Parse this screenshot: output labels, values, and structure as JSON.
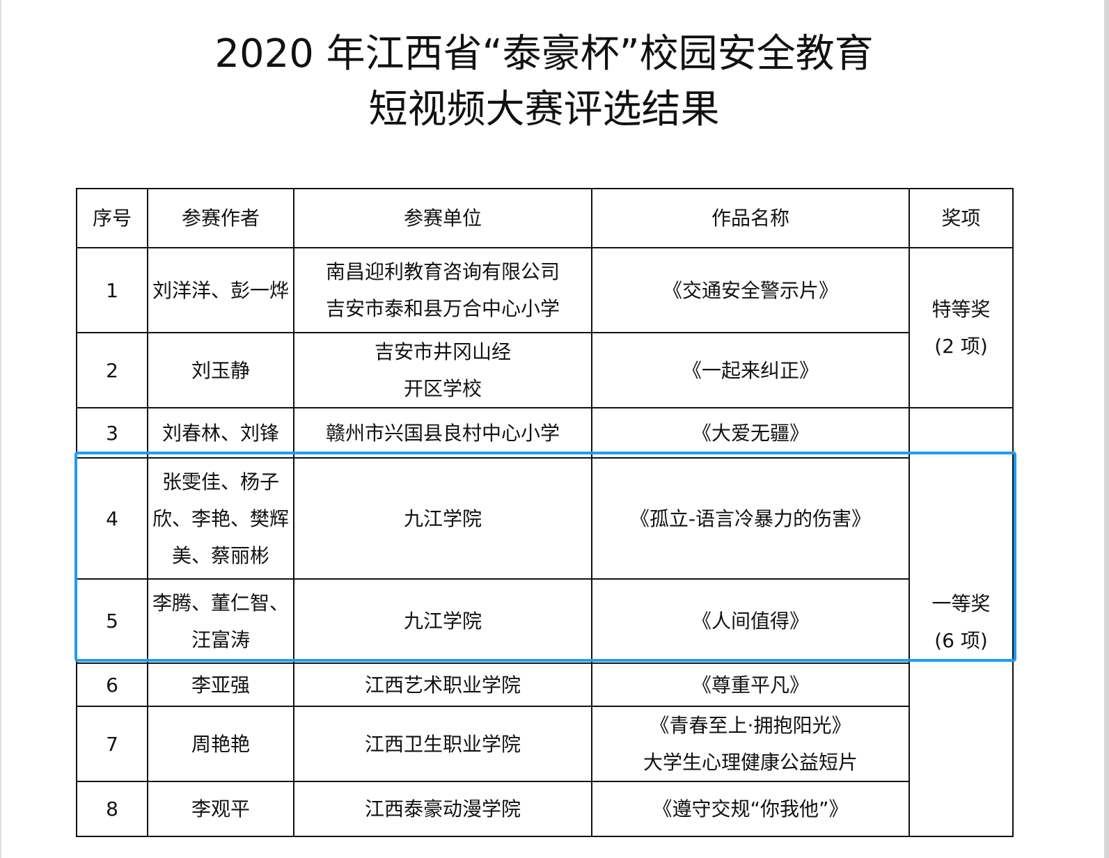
{
  "title": {
    "line1": "2020 年江西省“泰豪杯”校园安全教育",
    "line2": "短视频大赛评选结果"
  },
  "headers": [
    "序号",
    "参赛作者",
    "参赛单位",
    "作品名称",
    "奖项"
  ],
  "rows": [
    {
      "no": "1",
      "authors": [
        "刘洋洋、彭一烨"
      ],
      "unit": [
        "南昌迎利教育咨询有限公司",
        "吉安市泰和县万合中心小学"
      ],
      "work": [
        "《交通安全警示片》"
      ]
    },
    {
      "no": "2",
      "authors": [
        "刘玉静"
      ],
      "unit": [
        "吉安市井冈山经",
        "开区学校"
      ],
      "work": [
        "《一起来纠正》"
      ]
    },
    {
      "no": "3",
      "authors": [
        "刘春林、刘锋"
      ],
      "unit": [
        "赣州市兴国县良村中心小学"
      ],
      "work": [
        "《大爱无疆》"
      ]
    },
    {
      "no": "4",
      "authors": [
        "张雯佳、杨子",
        "欣、李艳、樊辉",
        "美、蔡丽彬"
      ],
      "unit": [
        "九江学院"
      ],
      "work": [
        "《孤立-语言冷暴力的伤害》"
      ]
    },
    {
      "no": "5",
      "authors": [
        "李腾、董仁智、",
        "汪富涛"
      ],
      "unit": [
        "九江学院"
      ],
      "work": [
        "《人间值得》"
      ]
    },
    {
      "no": "6",
      "authors": [
        "李亚强"
      ],
      "unit": [
        "江西艺术职业学院"
      ],
      "work": [
        "《尊重平凡》"
      ]
    },
    {
      "no": "7",
      "authors": [
        "周艳艳"
      ],
      "unit": [
        "江西卫生职业学院"
      ],
      "work": [
        "《青春至上·拥抱阳光》",
        "大学生心理健康公益短片"
      ]
    },
    {
      "no": "8",
      "authors": [
        "李观平"
      ],
      "unit": [
        "江西泰豪动漫学院"
      ],
      "work": [
        "《遵守交规“你我他”》"
      ]
    }
  ],
  "awards": [
    {
      "name": "特等奖",
      "count": "(2 项)"
    },
    {
      "name": "一等奖",
      "count": "(6 项)"
    }
  ],
  "highlight_color": "#1e9bf5"
}
